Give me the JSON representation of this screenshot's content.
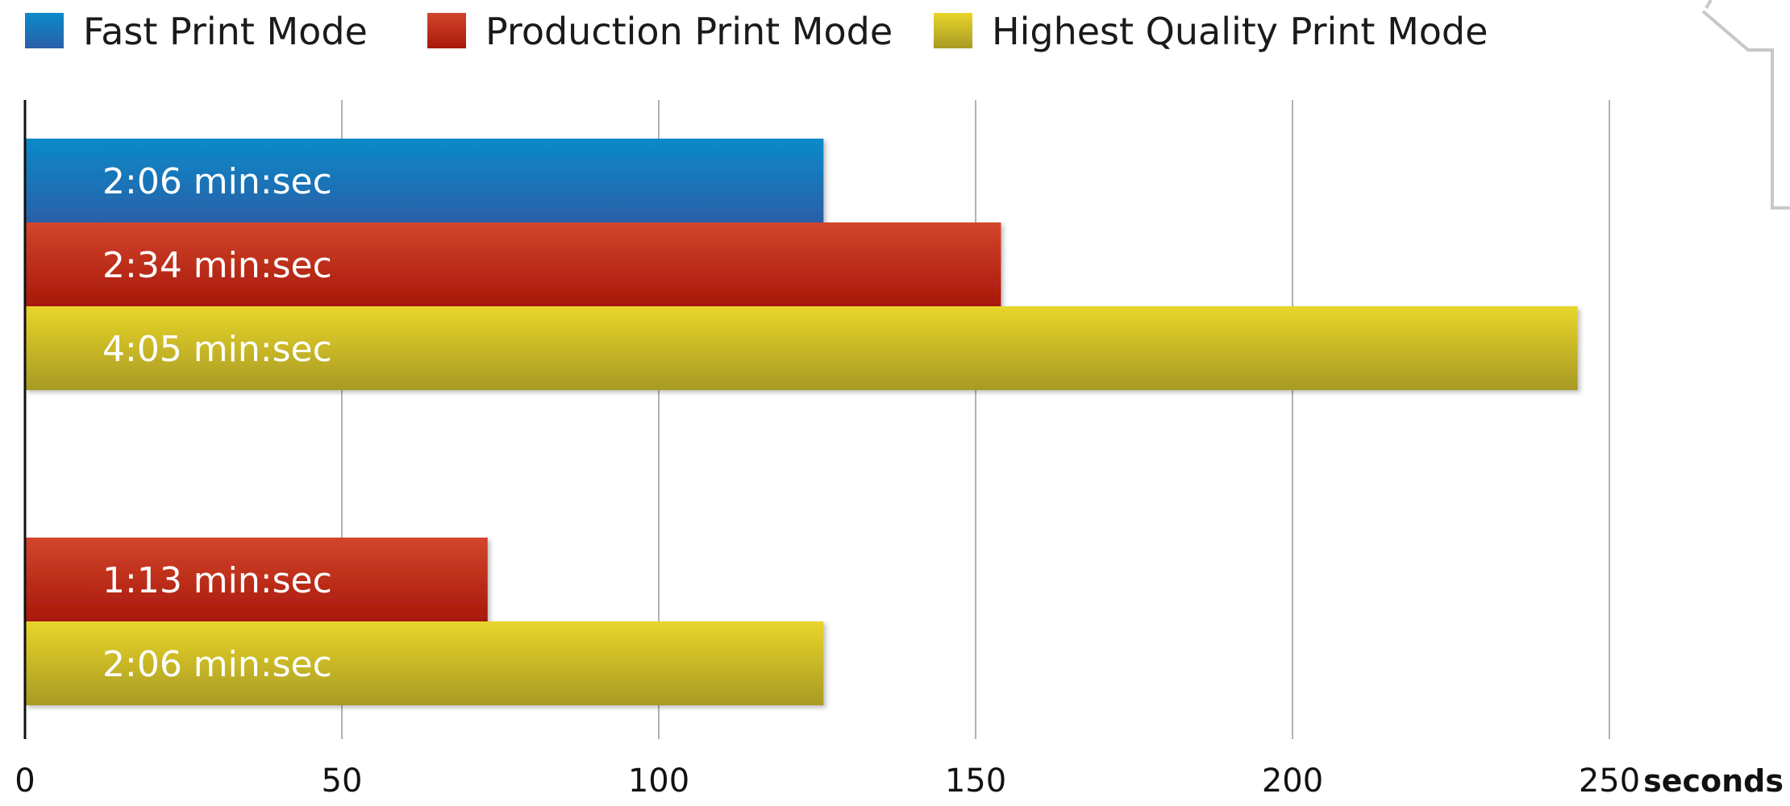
{
  "chart_data": {
    "type": "bar",
    "orientation": "horizontal",
    "x_unit_label": "seconds",
    "xlim": [
      0,
      250
    ],
    "x_ticks": [
      0,
      50,
      100,
      150,
      200,
      250
    ],
    "grid": true,
    "legend_position": "top-left",
    "series": [
      {
        "name": "Fast Print Mode",
        "color": "#1e73b8"
      },
      {
        "name": "Production Print Mode",
        "color": "#c0301c"
      },
      {
        "name": "Highest Quality Print Mode",
        "color": "#d6c42a"
      }
    ],
    "groups": [
      {
        "bars": [
          {
            "series": "Fast Print Mode",
            "value": 126,
            "label": "2:06 min:sec"
          },
          {
            "series": "Production Print Mode",
            "value": 154,
            "label": "2:34 min:sec"
          },
          {
            "series": "Highest Quality Print Mode",
            "value": 245,
            "label": "4:05 min:sec"
          }
        ]
      },
      {
        "bars": [
          {
            "series": "Production Print Mode",
            "value": 73,
            "label": "1:13 min:sec"
          },
          {
            "series": "Highest Quality Print Mode",
            "value": 126,
            "label": "2:06 min:sec"
          }
        ]
      }
    ]
  }
}
